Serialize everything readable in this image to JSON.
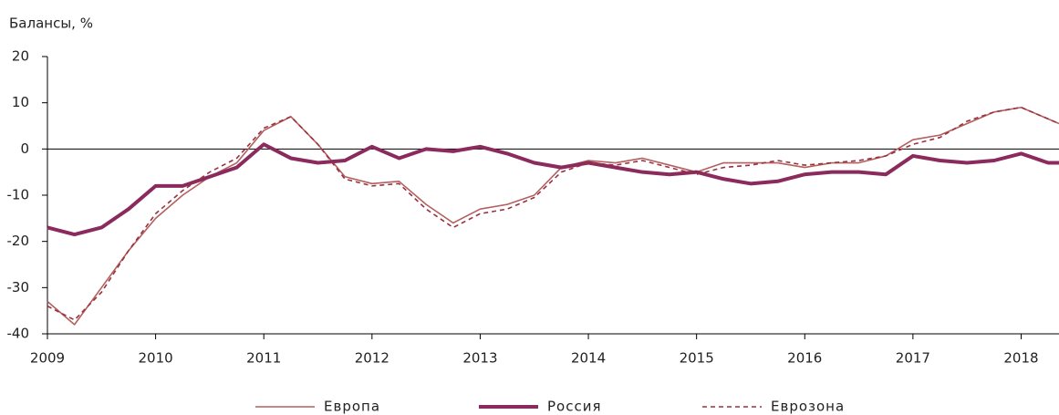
{
  "chart_data": {
    "type": "line",
    "ylabel": "Балансы, %",
    "x": [
      2009,
      2009.25,
      2009.5,
      2009.75,
      2010,
      2010.25,
      2010.5,
      2010.75,
      2011,
      2011.25,
      2011.5,
      2011.75,
      2012,
      2012.25,
      2012.5,
      2012.75,
      2013,
      2013.25,
      2013.5,
      2013.75,
      2014,
      2014.25,
      2014.5,
      2014.75,
      2015,
      2015.25,
      2015.5,
      2015.75,
      2016,
      2016.25,
      2016.5,
      2016.75,
      2017,
      2017.25,
      2017.5,
      2017.75,
      2018,
      2018.25,
      2018.35
    ],
    "series": [
      {
        "name": "Европа",
        "color": "#b3605e",
        "width": 1.6,
        "dash": "solid",
        "values": [
          -33,
          -38,
          -30,
          -22,
          -15,
          -10,
          -6,
          -3,
          4,
          7,
          1,
          -6,
          -7.5,
          -7,
          -12,
          -16,
          -13,
          -12,
          -10,
          -4,
          -2.5,
          -3,
          -2,
          -3.5,
          -5,
          -3,
          -3,
          -3,
          -4,
          -3,
          -3,
          -1.5,
          2,
          3,
          5.5,
          8,
          9,
          6.5,
          5.5
        ]
      },
      {
        "name": "Россия",
        "color": "#8b2a5c",
        "width": 4,
        "dash": "solid",
        "values": [
          -17,
          -18.5,
          -17,
          -13,
          -8,
          -8,
          -6,
          -4,
          1,
          -2,
          -3,
          -2.5,
          0.5,
          -2,
          0,
          -0.5,
          0.5,
          -1,
          -3,
          -4,
          -3,
          -4,
          -5,
          -5.5,
          -5,
          -6.5,
          -7.5,
          -7,
          -5.5,
          -5,
          -5,
          -5.5,
          -1.5,
          -2.5,
          -3,
          -2.5,
          -1,
          -3,
          -3
        ]
      },
      {
        "name": "Еврозона",
        "color": "#9a3040",
        "width": 1.6,
        "dash": "dashed",
        "values": [
          -34,
          -37,
          -31,
          -22,
          -14,
          -9,
          -5,
          -2,
          4.5,
          7,
          1,
          -6.5,
          -8,
          -7.5,
          -13,
          -17,
          -14,
          -13,
          -10.5,
          -5,
          -3,
          -3.5,
          -2.5,
          -4,
          -5.5,
          -4,
          -3.5,
          -2.5,
          -3.5,
          -3,
          -2.5,
          -1.5,
          1,
          2.5,
          6,
          8,
          9,
          6.5,
          5.5
        ]
      }
    ],
    "xlim": [
      2009,
      2018.35
    ],
    "xticks": [
      2009,
      2010,
      2011,
      2012,
      2013,
      2014,
      2015,
      2016,
      2017,
      2018
    ],
    "ylim": [
      -40,
      20
    ],
    "yticks": [
      -40,
      -30,
      -20,
      -10,
      0,
      10,
      20
    ],
    "legend": "bottom"
  }
}
